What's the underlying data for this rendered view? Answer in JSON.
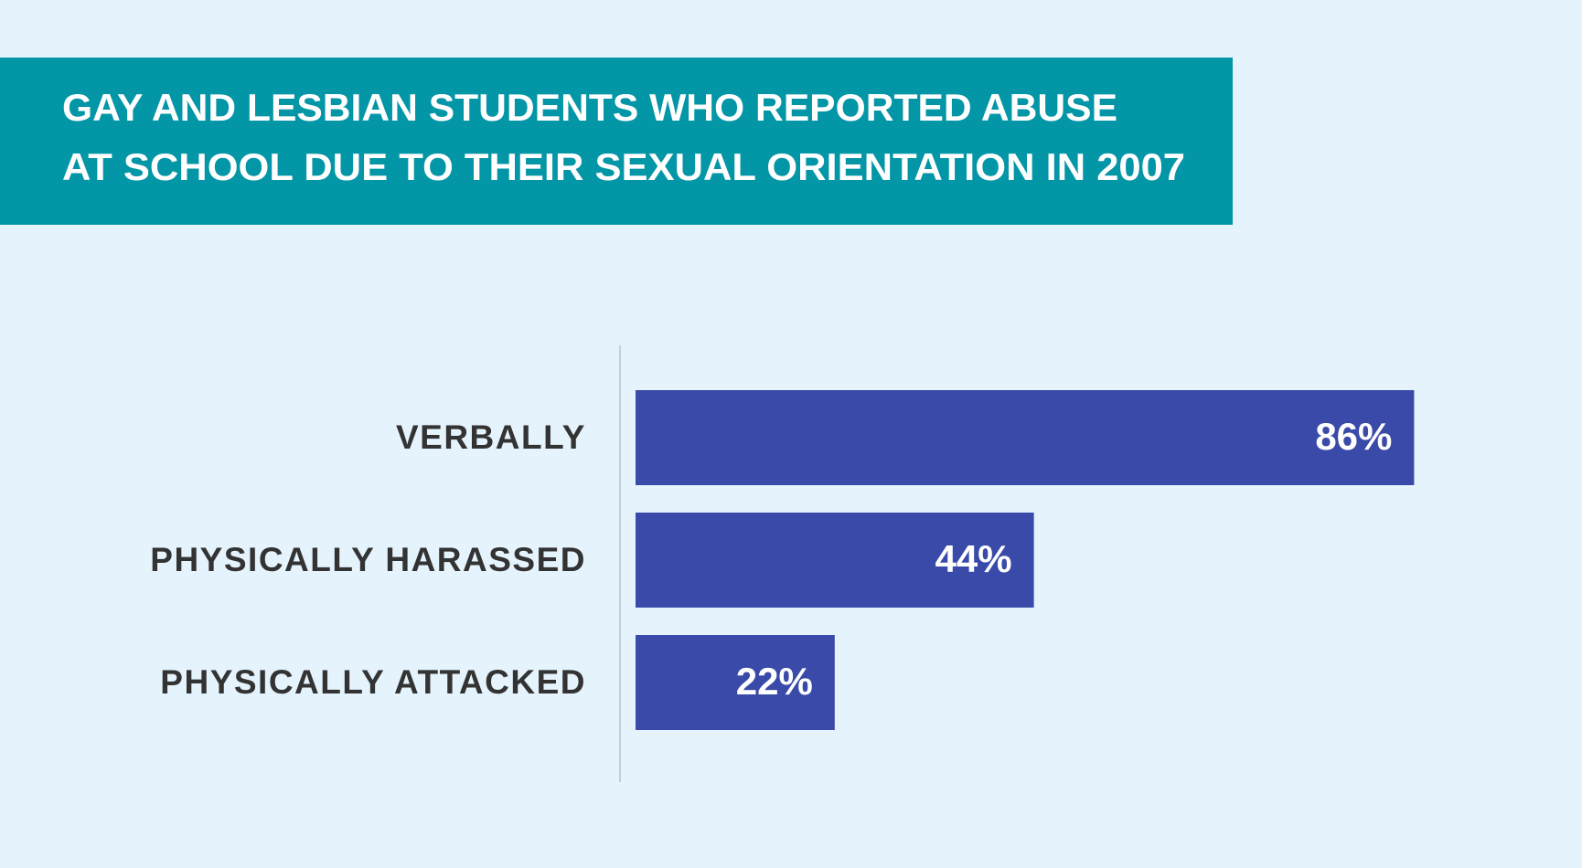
{
  "chart_data": {
    "type": "bar",
    "orientation": "horizontal",
    "title": [
      "GAY AND LESBIAN STUDENTS WHO REPORTED ABUSE",
      "AT SCHOOL DUE TO THEIR SEXUAL ORIENTATION IN 2007"
    ],
    "categories": [
      "VERBALLY",
      "PHYSICALLY HARASSED",
      "PHYSICALLY ATTACKED"
    ],
    "values": [
      86,
      44,
      22
    ],
    "value_labels": [
      "86%",
      "44%",
      "22%"
    ],
    "color": "#3a4aa8",
    "xlim": [
      0,
      100
    ]
  }
}
